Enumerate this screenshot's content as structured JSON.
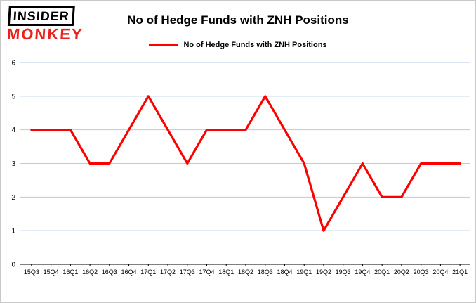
{
  "logo": {
    "line1": "INSIDER",
    "line2": "MONKEY"
  },
  "title": "No of Hedge Funds with ZNH Positions",
  "legend": {
    "label": "No of Hedge Funds with ZNH Positions",
    "color": "#ff0000"
  },
  "chart_data": {
    "type": "line",
    "title": "No of Hedge Funds with ZNH Positions",
    "categories": [
      "15Q3",
      "15Q4",
      "16Q1",
      "16Q2",
      "16Q3",
      "16Q4",
      "17Q1",
      "17Q2",
      "17Q3",
      "17Q4",
      "18Q1",
      "18Q2",
      "18Q3",
      "18Q4",
      "19Q1",
      "19Q2",
      "19Q3",
      "19Q4",
      "20Q1",
      "20Q2",
      "20Q3",
      "20Q4",
      "21Q1"
    ],
    "series": [
      {
        "name": "No of Hedge Funds with ZNH Positions",
        "color": "#ff0000",
        "values": [
          4,
          4,
          4,
          3,
          3,
          4,
          5,
          4,
          3,
          4,
          4,
          4,
          5,
          4,
          3,
          1,
          2,
          3,
          2,
          2,
          3,
          3,
          3
        ]
      }
    ],
    "xlabel": "",
    "ylabel": "",
    "ylim": [
      0,
      6
    ],
    "yticks": [
      0,
      1,
      2,
      3,
      4,
      5,
      6
    ],
    "grid": true,
    "gridline_color": "#b8cce4",
    "axis_color": "#000000",
    "legend_position": "top"
  }
}
